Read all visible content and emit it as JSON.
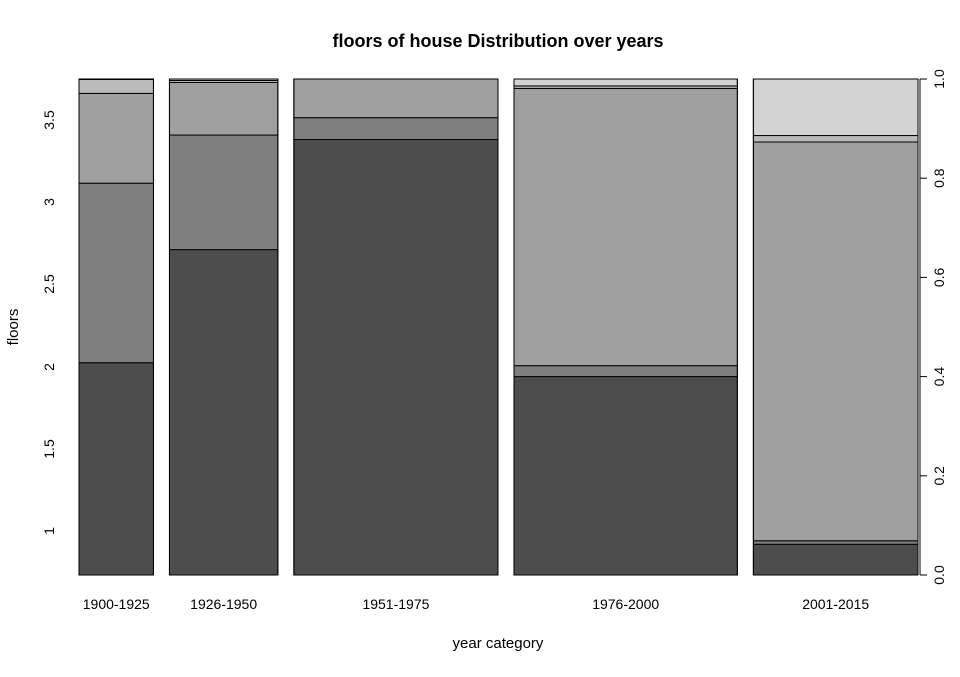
{
  "chart_data": {
    "type": "spineplot",
    "title": "floors of house Distribution over years",
    "xlabel": "year category",
    "ylabel": "floors",
    "categories": [
      "1900-1925",
      "1926-1950",
      "1951-1975",
      "1976-2000",
      "2001-2015"
    ],
    "category_proportions": [
      0.147,
      0.214,
      0.403,
      0.441,
      0.325
    ],
    "left_axis_ticks": [
      "1",
      "1.5",
      "2",
      "2.5",
      "3",
      "3.5"
    ],
    "right_axis_ticks": [
      "0.0",
      "0.2",
      "0.4",
      "0.6",
      "0.8",
      "1.0"
    ],
    "colors": [
      "#4d4d4d",
      "#7f7f7f",
      "#a0a0a0",
      "#bbbbbb",
      "#d3d3d3",
      "#e8e8e8"
    ],
    "stacks": [
      [
        0.428,
        0.362,
        0.181,
        0.028,
        0.001
      ],
      [
        0.656,
        0.231,
        0.106,
        0.004,
        0.003
      ],
      [
        0.878,
        0.044,
        0.078,
        0.0,
        0.0
      ],
      [
        0.4,
        0.022,
        0.559,
        0.005,
        0.014
      ],
      [
        0.062,
        0.007,
        0.804,
        0.013,
        0.114
      ]
    ]
  }
}
